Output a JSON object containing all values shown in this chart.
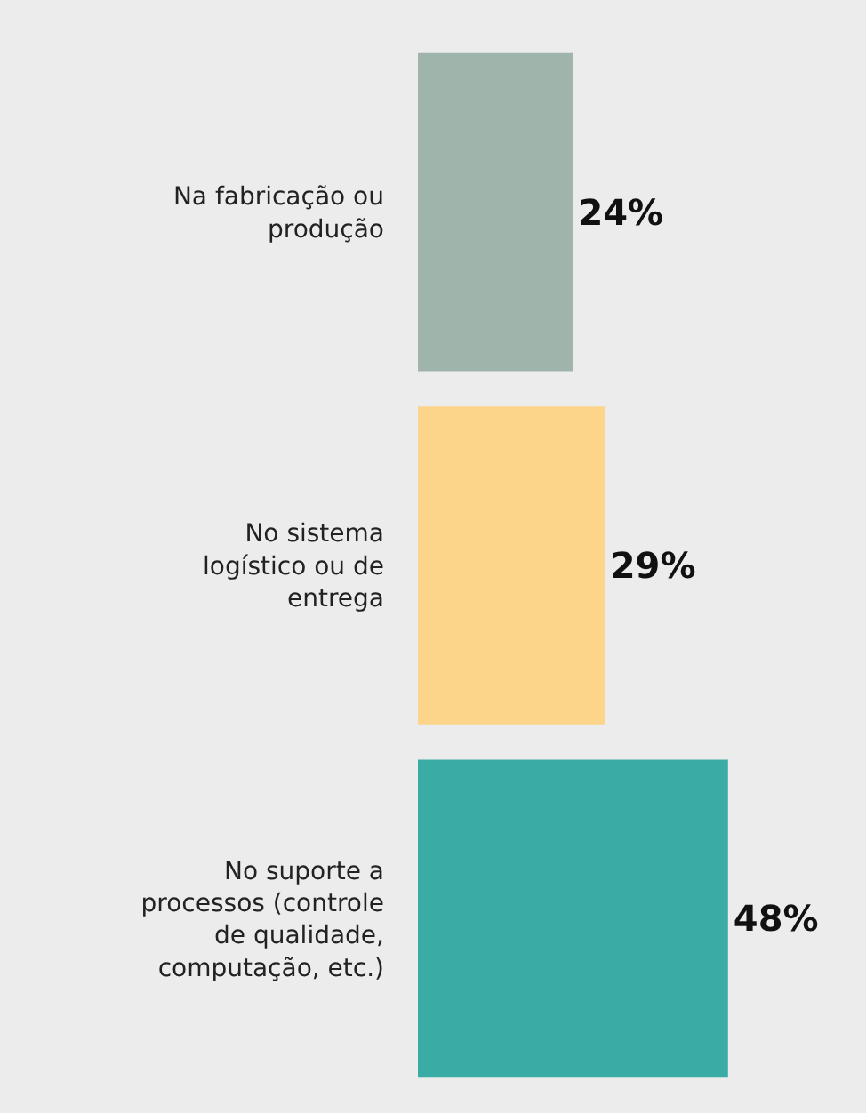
{
  "chart_data": {
    "type": "bar",
    "orientation": "horizontal",
    "categories": [
      "Na fabricação ou produção",
      "No sistema logístico ou de entrega",
      "No suporte a processos (controle de qualidade, computação, etc.)"
    ],
    "values": [
      24,
      29,
      48
    ],
    "colors": [
      "#9fb5ab",
      "#fdd58a",
      "#3aaba5"
    ],
    "value_labels": [
      "24%",
      "29%",
      "48%"
    ],
    "legend": false
  }
}
